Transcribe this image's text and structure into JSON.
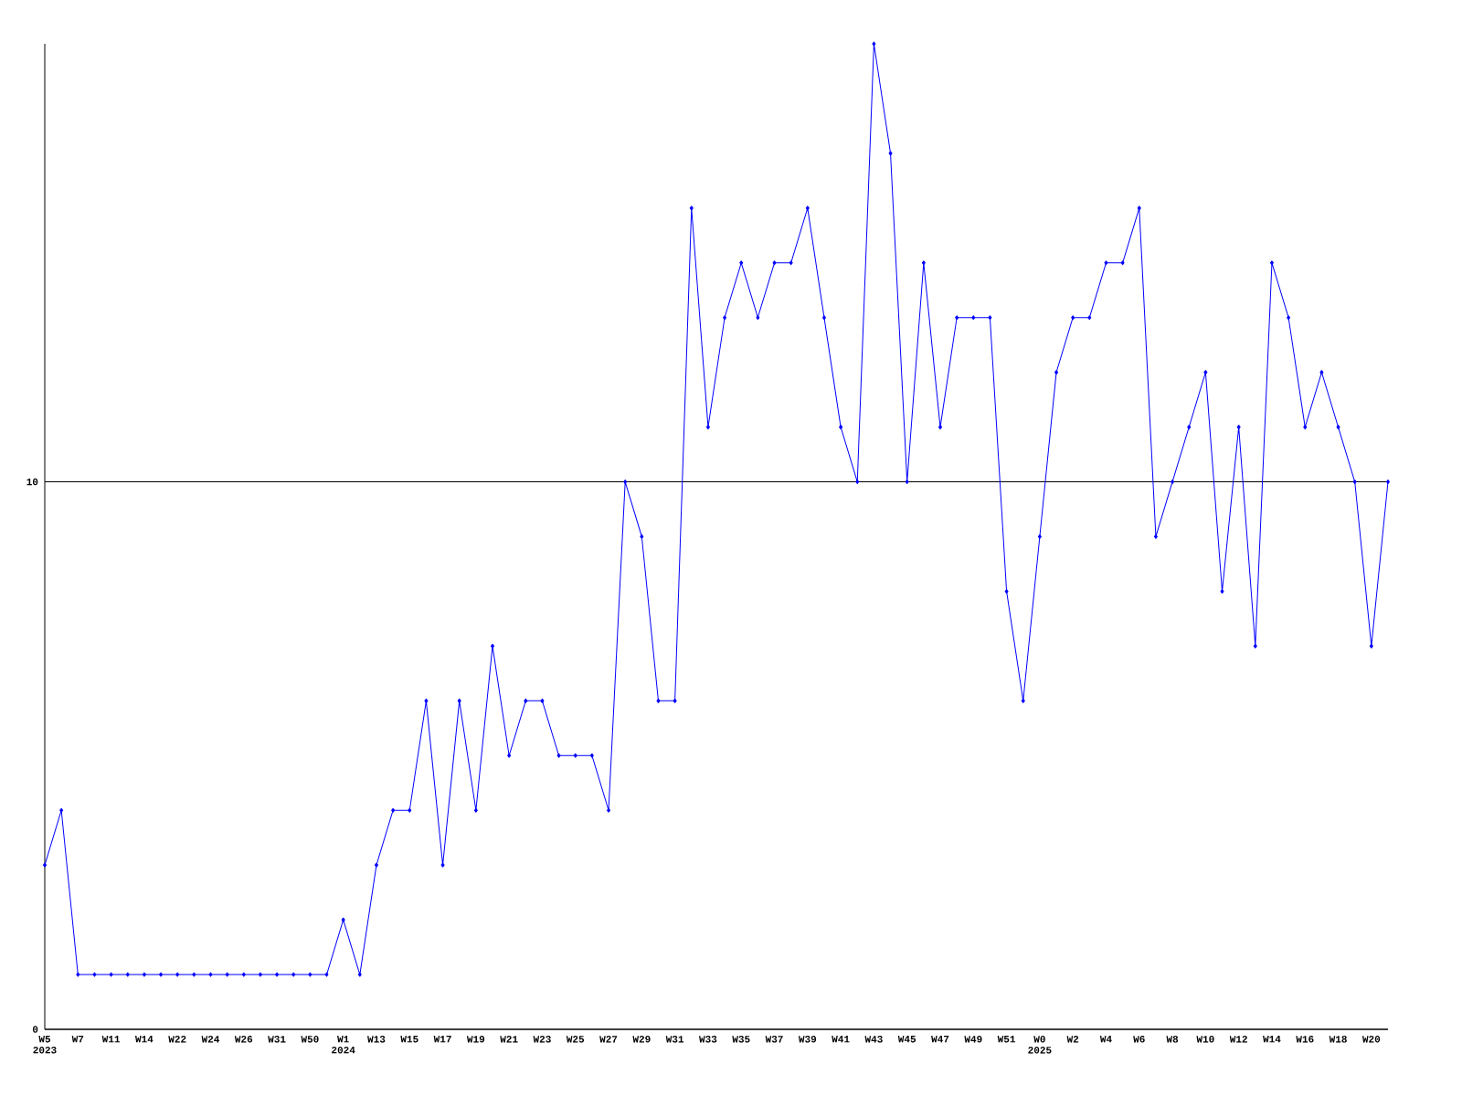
{
  "chart_data": {
    "type": "line",
    "categories": [
      "W5 2023",
      null,
      "W7",
      null,
      "W11",
      null,
      "W14",
      null,
      "W22",
      null,
      "W24",
      null,
      "W26",
      null,
      "W31",
      null,
      "W50",
      null,
      "W1 2024",
      null,
      "W13",
      null,
      "W15",
      null,
      "W17",
      null,
      "W19",
      null,
      "W21",
      null,
      "W23",
      null,
      "W25",
      null,
      "W27",
      null,
      "W29",
      null,
      "W31",
      null,
      "W33",
      null,
      "W35",
      null,
      "W37",
      null,
      "W39",
      null,
      "W41",
      null,
      "W43",
      null,
      "W45",
      null,
      "W47",
      null,
      "W49",
      null,
      "W51",
      null,
      "W0 2025",
      null,
      "W2",
      null,
      "W4",
      null,
      "W6",
      null,
      "W8",
      null,
      "W10",
      null,
      "W12",
      null,
      "W14",
      null,
      "W16",
      null,
      "W18",
      null,
      "W20",
      null
    ],
    "values": [
      3,
      4,
      1,
      1,
      1,
      1,
      1,
      1,
      1,
      1,
      1,
      1,
      1,
      1,
      1,
      1,
      1,
      1,
      2,
      1,
      3,
      4,
      4,
      6,
      3,
      6,
      4,
      7,
      5,
      6,
      6,
      5,
      5,
      5,
      4,
      10,
      9,
      6,
      6,
      15,
      11,
      13,
      14,
      13,
      14,
      14,
      15,
      13,
      11,
      10,
      18,
      16,
      10,
      14,
      11,
      13,
      13,
      13,
      8,
      6,
      9,
      12,
      13,
      13,
      14,
      14,
      15,
      9,
      10,
      11,
      12,
      8,
      11,
      7,
      14,
      13,
      11,
      12,
      11,
      10,
      7,
      10
    ],
    "color": "#0000ff",
    "marker": "diamond",
    "ylim": [
      0,
      18
    ],
    "yticks": [
      0,
      10
    ],
    "grid": "y"
  }
}
